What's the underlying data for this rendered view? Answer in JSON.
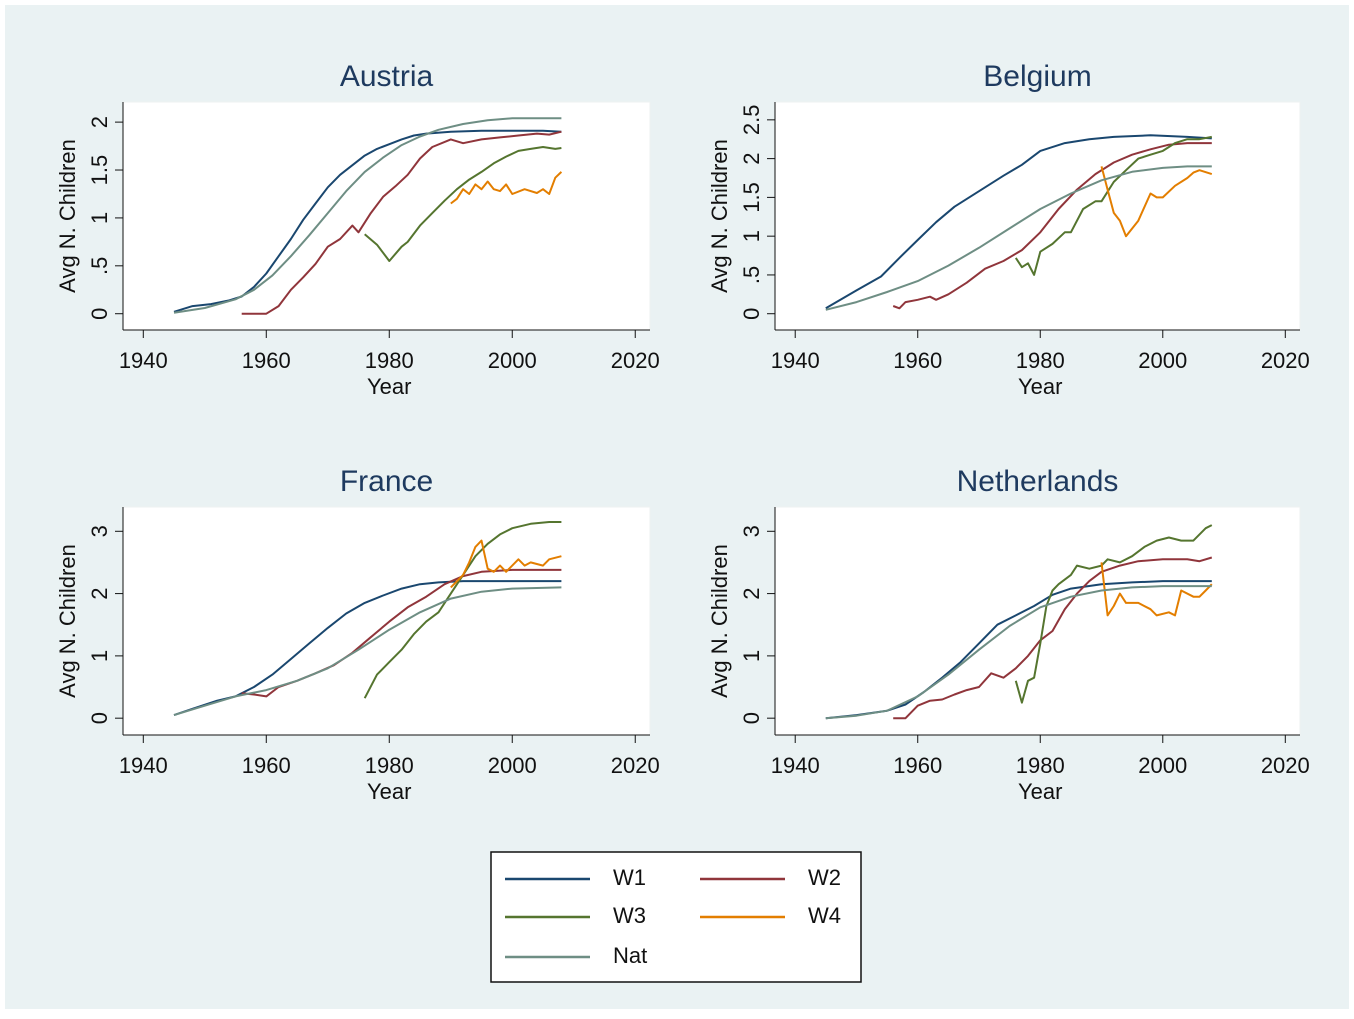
{
  "chart_data": [
    {
      "type": "line",
      "title": "Austria",
      "xlabel": "Year",
      "ylabel": "Avg N. Children",
      "xlim": [
        1936.7,
        2022.4
      ],
      "xticks": [
        1940,
        1960,
        1980,
        2000,
        2020
      ],
      "ylim": [
        -0.17,
        2.21
      ],
      "yticks": [
        0,
        {
          "value": 0.5,
          "label": ".5"
        },
        1,
        1.5,
        2
      ],
      "series": [
        {
          "name": "W1",
          "color": "#1a476f",
          "x": [
            1945,
            1948,
            1951,
            1954,
            1956,
            1958,
            1960,
            1962,
            1964,
            1966,
            1968,
            1970,
            1972,
            1974,
            1976,
            1978,
            1980,
            1982,
            1984,
            1986,
            1990,
            1995,
            2000,
            2005,
            2008
          ],
          "values": [
            0.02,
            0.08,
            0.1,
            0.14,
            0.18,
            0.28,
            0.42,
            0.6,
            0.78,
            0.98,
            1.15,
            1.32,
            1.45,
            1.55,
            1.65,
            1.72,
            1.77,
            1.82,
            1.86,
            1.88,
            1.9,
            1.91,
            1.91,
            1.91,
            1.9
          ]
        },
        {
          "name": "W2",
          "color": "#90353b",
          "x": [
            1956,
            1960,
            1962,
            1964,
            1966,
            1968,
            1970,
            1972,
            1974,
            1975,
            1977,
            1979,
            1981,
            1983,
            1985,
            1987,
            1990,
            1992,
            1995,
            1998,
            2001,
            2004,
            2006,
            2008
          ],
          "values": [
            0,
            0,
            0.08,
            0.25,
            0.38,
            0.52,
            0.7,
            0.78,
            0.92,
            0.85,
            1.05,
            1.22,
            1.33,
            1.45,
            1.62,
            1.74,
            1.82,
            1.78,
            1.82,
            1.84,
            1.86,
            1.88,
            1.87,
            1.9
          ]
        },
        {
          "name": "W3",
          "color": "#55752f",
          "x": [
            1976,
            1978,
            1980,
            1982,
            1983,
            1985,
            1987,
            1989,
            1991,
            1993,
            1995,
            1997,
            1999,
            2001,
            2003,
            2005,
            2007,
            2008
          ],
          "values": [
            0.83,
            0.72,
            0.55,
            0.7,
            0.75,
            0.92,
            1.05,
            1.18,
            1.3,
            1.4,
            1.48,
            1.57,
            1.64,
            1.7,
            1.72,
            1.74,
            1.72,
            1.73
          ]
        },
        {
          "name": "W4",
          "color": "#e37e00",
          "x": [
            1990,
            1991,
            1992,
            1993,
            1994,
            1995,
            1996,
            1997,
            1998,
            1999,
            2000,
            2002,
            2004,
            2005,
            2006,
            2007,
            2008
          ],
          "values": [
            1.15,
            1.2,
            1.3,
            1.25,
            1.35,
            1.3,
            1.38,
            1.3,
            1.28,
            1.35,
            1.25,
            1.3,
            1.26,
            1.3,
            1.25,
            1.42,
            1.48
          ]
        },
        {
          "name": "Nat",
          "color": "#6e8e84",
          "x": [
            1945,
            1950,
            1955,
            1958,
            1961,
            1964,
            1967,
            1970,
            1973,
            1976,
            1979,
            1982,
            1985,
            1988,
            1992,
            1996,
            2000,
            2004,
            2008
          ],
          "values": [
            0.01,
            0.06,
            0.15,
            0.25,
            0.4,
            0.6,
            0.82,
            1.05,
            1.28,
            1.48,
            1.63,
            1.76,
            1.85,
            1.92,
            1.98,
            2.02,
            2.04,
            2.04,
            2.04
          ]
        }
      ]
    },
    {
      "type": "line",
      "title": "Belgium",
      "xlabel": "Year",
      "ylabel": "Avg N. Children",
      "xlim": [
        1936.7,
        2022.4
      ],
      "xticks": [
        1940,
        1960,
        1980,
        2000,
        2020
      ],
      "ylim": [
        -0.21,
        2.73
      ],
      "yticks": [
        0,
        {
          "value": 0.5,
          "label": ".5"
        },
        1,
        1.5,
        2,
        2.5
      ],
      "series": [
        {
          "name": "W1",
          "color": "#1a476f",
          "x": [
            1945,
            1950,
            1954,
            1957,
            1960,
            1963,
            1966,
            1970,
            1974,
            1977,
            1980,
            1984,
            1988,
            1992,
            1998,
            2004,
            2008
          ],
          "values": [
            0.07,
            0.3,
            0.48,
            0.72,
            0.95,
            1.18,
            1.38,
            1.58,
            1.78,
            1.92,
            2.1,
            2.2,
            2.25,
            2.28,
            2.3,
            2.28,
            2.26
          ]
        },
        {
          "name": "W2",
          "color": "#90353b",
          "x": [
            1956,
            1957,
            1958,
            1960,
            1962,
            1963,
            1965,
            1968,
            1971,
            1974,
            1977,
            1980,
            1983,
            1986,
            1989,
            1992,
            1995,
            1998,
            2001,
            2004,
            2008
          ],
          "values": [
            0.1,
            0.07,
            0.15,
            0.18,
            0.22,
            0.18,
            0.25,
            0.4,
            0.58,
            0.68,
            0.82,
            1.05,
            1.35,
            1.6,
            1.8,
            1.95,
            2.05,
            2.12,
            2.18,
            2.2,
            2.2
          ]
        },
        {
          "name": "W3",
          "color": "#55752f",
          "x": [
            1976,
            1977,
            1978,
            1979,
            1980,
            1982,
            1984,
            1985,
            1987,
            1989,
            1990,
            1992,
            1994,
            1996,
            1998,
            2000,
            2002,
            2004,
            2006,
            2008
          ],
          "values": [
            0.72,
            0.6,
            0.65,
            0.5,
            0.8,
            0.9,
            1.05,
            1.05,
            1.35,
            1.45,
            1.45,
            1.7,
            1.85,
            2.0,
            2.05,
            2.1,
            2.2,
            2.25,
            2.25,
            2.28
          ]
        },
        {
          "name": "W4",
          "color": "#e37e00",
          "x": [
            1990,
            1991,
            1992,
            1993,
            1994,
            1996,
            1998,
            1999,
            2000,
            2002,
            2004,
            2005,
            2006,
            2008
          ],
          "values": [
            1.9,
            1.6,
            1.3,
            1.2,
            1.0,
            1.2,
            1.55,
            1.5,
            1.5,
            1.65,
            1.75,
            1.82,
            1.85,
            1.8
          ]
        },
        {
          "name": "Nat",
          "color": "#6e8e84",
          "x": [
            1945,
            1950,
            1955,
            1960,
            1965,
            1970,
            1975,
            1980,
            1985,
            1990,
            1995,
            2000,
            2004,
            2008
          ],
          "values": [
            0.05,
            0.15,
            0.28,
            0.42,
            0.62,
            0.85,
            1.1,
            1.35,
            1.55,
            1.72,
            1.83,
            1.88,
            1.9,
            1.9
          ]
        }
      ]
    },
    {
      "type": "line",
      "title": "France",
      "xlabel": "Year",
      "ylabel": "Avg N. Children",
      "xlim": [
        1936.7,
        2022.4
      ],
      "xticks": [
        1940,
        1960,
        1980,
        2000,
        2020
      ],
      "ylim": [
        -0.27,
        3.39
      ],
      "yticks": [
        0,
        1,
        2,
        3
      ],
      "series": [
        {
          "name": "W1",
          "color": "#1a476f",
          "x": [
            1945,
            1948,
            1952,
            1955,
            1958,
            1961,
            1964,
            1967,
            1970,
            1973,
            1976,
            1979,
            1982,
            1985,
            1988,
            1992,
            1996,
            2000,
            2004,
            2008
          ],
          "values": [
            0.05,
            0.15,
            0.28,
            0.35,
            0.5,
            0.7,
            0.95,
            1.2,
            1.45,
            1.68,
            1.85,
            1.97,
            2.08,
            2.15,
            2.18,
            2.2,
            2.2,
            2.2,
            2.2,
            2.2
          ]
        },
        {
          "name": "W2",
          "color": "#90353b",
          "x": [
            1956,
            1958,
            1960,
            1962,
            1965,
            1968,
            1971,
            1974,
            1977,
            1980,
            1983,
            1986,
            1989,
            1992,
            1995,
            2000,
            2005,
            2008
          ],
          "values": [
            0.4,
            0.38,
            0.35,
            0.5,
            0.6,
            0.72,
            0.85,
            1.05,
            1.3,
            1.55,
            1.78,
            1.95,
            2.15,
            2.28,
            2.35,
            2.38,
            2.38,
            2.38
          ]
        },
        {
          "name": "W3",
          "color": "#55752f",
          "x": [
            1976,
            1978,
            1980,
            1982,
            1984,
            1986,
            1988,
            1990,
            1992,
            1994,
            1996,
            1998,
            2000,
            2003,
            2006,
            2008
          ],
          "values": [
            0.32,
            0.7,
            0.9,
            1.1,
            1.35,
            1.55,
            1.7,
            2.0,
            2.3,
            2.6,
            2.8,
            2.95,
            3.05,
            3.12,
            3.15,
            3.15
          ]
        },
        {
          "name": "W4",
          "color": "#e37e00",
          "x": [
            1990,
            1992,
            1993,
            1994,
            1995,
            1996,
            1997,
            1998,
            1999,
            2001,
            2002,
            2003,
            2005,
            2006,
            2008
          ],
          "values": [
            2.1,
            2.3,
            2.5,
            2.75,
            2.85,
            2.4,
            2.35,
            2.45,
            2.35,
            2.55,
            2.45,
            2.5,
            2.45,
            2.55,
            2.6
          ]
        },
        {
          "name": "Nat",
          "color": "#6e8e84",
          "x": [
            1945,
            1950,
            1955,
            1960,
            1965,
            1970,
            1975,
            1980,
            1985,
            1990,
            1995,
            2000,
            2008
          ],
          "values": [
            0.05,
            0.2,
            0.35,
            0.45,
            0.6,
            0.8,
            1.1,
            1.42,
            1.7,
            1.92,
            2.03,
            2.08,
            2.1
          ]
        }
      ]
    },
    {
      "type": "line",
      "title": "Netherlands",
      "xlabel": "Year",
      "ylabel": "Avg N. Children",
      "xlim": [
        1936.7,
        2022.4
      ],
      "xticks": [
        1940,
        1960,
        1980,
        2000,
        2020
      ],
      "ylim": [
        -0.27,
        3.39
      ],
      "yticks": [
        0,
        1,
        2,
        3
      ],
      "series": [
        {
          "name": "W1",
          "color": "#1a476f",
          "x": [
            1945,
            1950,
            1955,
            1958,
            1961,
            1964,
            1967,
            1970,
            1973,
            1976,
            1979,
            1982,
            1985,
            1990,
            1995,
            2000,
            2004,
            2008
          ],
          "values": [
            0,
            0.05,
            0.12,
            0.22,
            0.42,
            0.65,
            0.9,
            1.2,
            1.5,
            1.65,
            1.8,
            1.98,
            2.08,
            2.15,
            2.18,
            2.2,
            2.2,
            2.2
          ]
        },
        {
          "name": "W2",
          "color": "#90353b",
          "x": [
            1956,
            1958,
            1960,
            1962,
            1964,
            1966,
            1968,
            1970,
            1972,
            1974,
            1976,
            1978,
            1980,
            1982,
            1984,
            1986,
            1988,
            1990,
            1993,
            1996,
            2000,
            2004,
            2006,
            2008
          ],
          "values": [
            0,
            0,
            0.2,
            0.28,
            0.3,
            0.38,
            0.45,
            0.5,
            0.72,
            0.65,
            0.8,
            1.0,
            1.25,
            1.4,
            1.75,
            2.0,
            2.2,
            2.35,
            2.45,
            2.52,
            2.55,
            2.55,
            2.52,
            2.58
          ]
        },
        {
          "name": "W3",
          "color": "#55752f",
          "x": [
            1976,
            1977,
            1978,
            1979,
            1980,
            1981,
            1982,
            1983,
            1985,
            1986,
            1988,
            1990,
            1991,
            1993,
            1995,
            1997,
            1999,
            2001,
            2003,
            2005,
            2007,
            2008
          ],
          "values": [
            0.6,
            0.25,
            0.6,
            0.65,
            1.2,
            1.8,
            2.05,
            2.15,
            2.3,
            2.45,
            2.4,
            2.45,
            2.55,
            2.5,
            2.6,
            2.75,
            2.85,
            2.9,
            2.85,
            2.85,
            3.05,
            3.1
          ]
        },
        {
          "name": "W4",
          "color": "#e37e00",
          "x": [
            1990,
            1991,
            1992,
            1993,
            1994,
            1996,
            1998,
            1999,
            2001,
            2002,
            2003,
            2005,
            2006,
            2007,
            2008
          ],
          "values": [
            2.5,
            1.65,
            1.8,
            2.0,
            1.85,
            1.85,
            1.75,
            1.65,
            1.7,
            1.65,
            2.05,
            1.95,
            1.95,
            2.05,
            2.15
          ]
        },
        {
          "name": "Nat",
          "color": "#6e8e84",
          "x": [
            1945,
            1950,
            1955,
            1960,
            1965,
            1970,
            1975,
            1980,
            1985,
            1990,
            1995,
            2000,
            2008
          ],
          "values": [
            0,
            0.04,
            0.12,
            0.35,
            0.7,
            1.1,
            1.48,
            1.78,
            1.95,
            2.05,
            2.1,
            2.12,
            2.12
          ]
        }
      ]
    }
  ]
}
